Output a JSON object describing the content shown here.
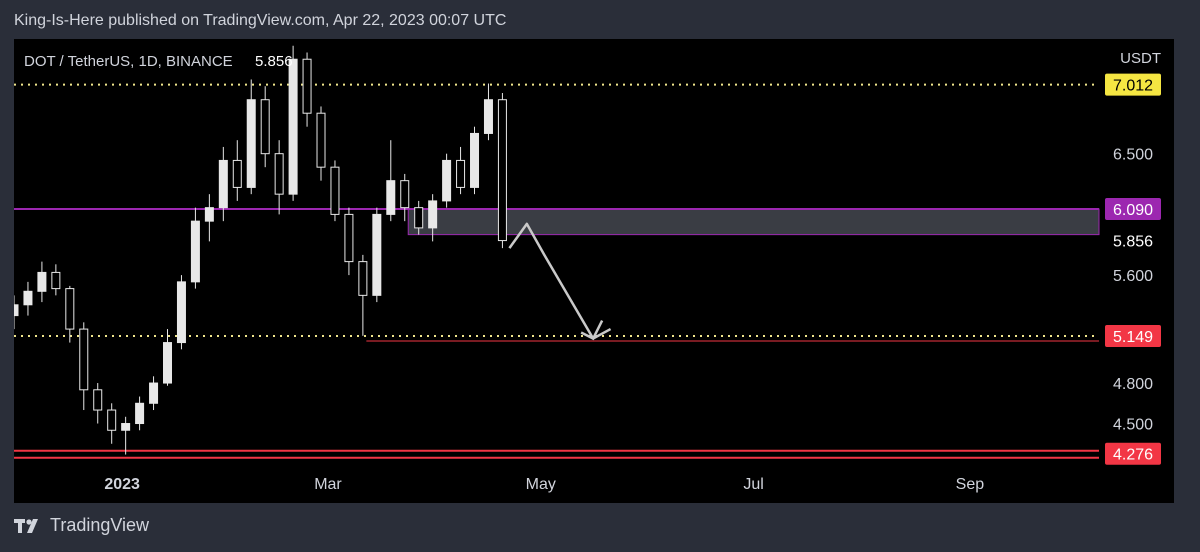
{
  "publication": {
    "header": "King-Is-Here published on TradingView.com, Apr 22, 2023 00:07 UTC"
  },
  "footer": {
    "brand": "TradingView",
    "logo_icon": "tradingview-logo-icon"
  },
  "colors": {
    "page_bg": "#2a2e39",
    "chart_bg": "#000000",
    "candle": "#e8e8e8",
    "level_dotted": "#f0e68c",
    "level_purple": "#9c27b0",
    "level_red": "#f23645",
    "zone_gray": "#3a3d44",
    "arrow": "#c9c9c9",
    "price_label_yellow": "#f5e642",
    "price_label_purple": "#9c27b0",
    "price_label_red": "#f23645"
  },
  "chart_data": {
    "type": "candlestick",
    "symbol_line": {
      "symbol": "DOT / TetherUS, 1D, BINANCE",
      "last_price": "5.856"
    },
    "currency": "USDT",
    "y_axis": {
      "range": [
        4.2,
        7.35
      ],
      "ticks": [
        "6.500",
        "5.600",
        "4.800",
        "4.500"
      ]
    },
    "x_axis": {
      "range_dates": [
        "2022-12-01",
        "2023-10-08"
      ],
      "ticks": [
        {
          "label": "2023",
          "date": "2023-01-01"
        },
        {
          "label": "Mar",
          "date": "2023-03-01"
        },
        {
          "label": "May",
          "date": "2023-05-01"
        },
        {
          "label": "Jul",
          "date": "2023-07-01"
        },
        {
          "label": "Sep",
          "date": "2023-09-01"
        }
      ]
    },
    "levels": [
      {
        "name": "resistance-dotted",
        "price": 7.012,
        "label": "7.012",
        "style": "dotted",
        "color": "#f0e68c",
        "label_bg": "#f5e642",
        "label_color": "#000000"
      },
      {
        "name": "purple-level",
        "price": 6.09,
        "label": "6.090",
        "style": "solid",
        "color": "#9c27b0",
        "label_bg": "#9c27b0",
        "label_color": "#ffffff"
      },
      {
        "name": "last-price",
        "price": 5.856,
        "label": "5.856",
        "style": "none",
        "color": "#ffffff",
        "label_bg": "#000000",
        "label_color": "#ffffff"
      },
      {
        "name": "support-dotted",
        "price": 5.149,
        "label": "5.149",
        "style": "dotted",
        "color": "#f0e68c",
        "label_bg": "#f23645",
        "label_color": "#ffffff"
      },
      {
        "name": "red-support",
        "price": 4.276,
        "label": "4.276",
        "style": "solid",
        "color": "#f23645",
        "label_bg": "#f23645",
        "label_color": "#ffffff"
      }
    ],
    "zones": [
      {
        "name": "gray-zone",
        "from_date": "2023-03-24",
        "price_low": 5.9,
        "price_high": 6.09
      }
    ],
    "projection_path": [
      {
        "date": "2023-04-22",
        "price": 5.8
      },
      {
        "date": "2023-04-27",
        "price": 5.98
      },
      {
        "date": "2023-05-02",
        "price": 5.75
      },
      {
        "date": "2023-05-16",
        "price": 5.13
      },
      {
        "date": "2023-05-21",
        "price": 5.2
      }
    ],
    "candles": [
      {
        "d": "2022-12-01",
        "o": 5.3,
        "h": 5.45,
        "l": 5.2,
        "c": 5.38
      },
      {
        "d": "2022-12-05",
        "o": 5.38,
        "h": 5.55,
        "l": 5.3,
        "c": 5.48
      },
      {
        "d": "2022-12-09",
        "o": 5.48,
        "h": 5.7,
        "l": 5.4,
        "c": 5.62
      },
      {
        "d": "2022-12-13",
        "o": 5.62,
        "h": 5.68,
        "l": 5.45,
        "c": 5.5
      },
      {
        "d": "2022-12-17",
        "o": 5.5,
        "h": 5.52,
        "l": 5.1,
        "c": 5.2
      },
      {
        "d": "2022-12-21",
        "o": 5.2,
        "h": 5.25,
        "l": 4.6,
        "c": 4.75
      },
      {
        "d": "2022-12-25",
        "o": 4.75,
        "h": 4.8,
        "l": 4.5,
        "c": 4.6
      },
      {
        "d": "2022-12-29",
        "o": 4.6,
        "h": 4.65,
        "l": 4.35,
        "c": 4.45
      },
      {
        "d": "2023-01-02",
        "o": 4.45,
        "h": 4.55,
        "l": 4.27,
        "c": 4.5
      },
      {
        "d": "2023-01-06",
        "o": 4.5,
        "h": 4.7,
        "l": 4.45,
        "c": 4.65
      },
      {
        "d": "2023-01-10",
        "o": 4.65,
        "h": 4.85,
        "l": 4.6,
        "c": 4.8
      },
      {
        "d": "2023-01-14",
        "o": 4.8,
        "h": 5.2,
        "l": 4.78,
        "c": 5.1
      },
      {
        "d": "2023-01-18",
        "o": 5.1,
        "h": 5.6,
        "l": 5.05,
        "c": 5.55
      },
      {
        "d": "2023-01-22",
        "o": 5.55,
        "h": 6.1,
        "l": 5.5,
        "c": 6.0
      },
      {
        "d": "2023-01-26",
        "o": 6.0,
        "h": 6.2,
        "l": 5.85,
        "c": 6.1
      },
      {
        "d": "2023-01-30",
        "o": 6.1,
        "h": 6.55,
        "l": 6.0,
        "c": 6.45
      },
      {
        "d": "2023-02-03",
        "o": 6.45,
        "h": 6.6,
        "l": 6.15,
        "c": 6.25
      },
      {
        "d": "2023-02-07",
        "o": 6.25,
        "h": 7.05,
        "l": 6.2,
        "c": 6.9
      },
      {
        "d": "2023-02-11",
        "o": 6.9,
        "h": 7.0,
        "l": 6.4,
        "c": 6.5
      },
      {
        "d": "2023-02-15",
        "o": 6.5,
        "h": 6.6,
        "l": 6.05,
        "c": 6.2
      },
      {
        "d": "2023-02-19",
        "o": 6.2,
        "h": 7.3,
        "l": 6.15,
        "c": 7.2
      },
      {
        "d": "2023-02-23",
        "o": 7.2,
        "h": 7.25,
        "l": 6.7,
        "c": 6.8
      },
      {
        "d": "2023-02-27",
        "o": 6.8,
        "h": 6.85,
        "l": 6.3,
        "c": 6.4
      },
      {
        "d": "2023-03-03",
        "o": 6.4,
        "h": 6.45,
        "l": 6.0,
        "c": 6.05
      },
      {
        "d": "2023-03-07",
        "o": 6.05,
        "h": 6.1,
        "l": 5.6,
        "c": 5.7
      },
      {
        "d": "2023-03-11",
        "o": 5.7,
        "h": 5.75,
        "l": 5.15,
        "c": 5.45
      },
      {
        "d": "2023-03-15",
        "o": 5.45,
        "h": 6.1,
        "l": 5.4,
        "c": 6.05
      },
      {
        "d": "2023-03-19",
        "o": 6.05,
        "h": 6.6,
        "l": 6.0,
        "c": 6.3
      },
      {
        "d": "2023-03-23",
        "o": 6.3,
        "h": 6.35,
        "l": 6.0,
        "c": 6.1
      },
      {
        "d": "2023-03-27",
        "o": 6.1,
        "h": 6.15,
        "l": 5.9,
        "c": 5.95
      },
      {
        "d": "2023-03-31",
        "o": 5.95,
        "h": 6.2,
        "l": 5.85,
        "c": 6.15
      },
      {
        "d": "2023-04-04",
        "o": 6.15,
        "h": 6.5,
        "l": 6.1,
        "c": 6.45
      },
      {
        "d": "2023-04-08",
        "o": 6.45,
        "h": 6.55,
        "l": 6.2,
        "c": 6.25
      },
      {
        "d": "2023-04-12",
        "o": 6.25,
        "h": 6.7,
        "l": 6.2,
        "c": 6.65
      },
      {
        "d": "2023-04-16",
        "o": 6.65,
        "h": 7.02,
        "l": 6.6,
        "c": 6.9
      },
      {
        "d": "2023-04-20",
        "o": 6.9,
        "h": 6.95,
        "l": 5.8,
        "c": 5.856
      }
    ]
  }
}
